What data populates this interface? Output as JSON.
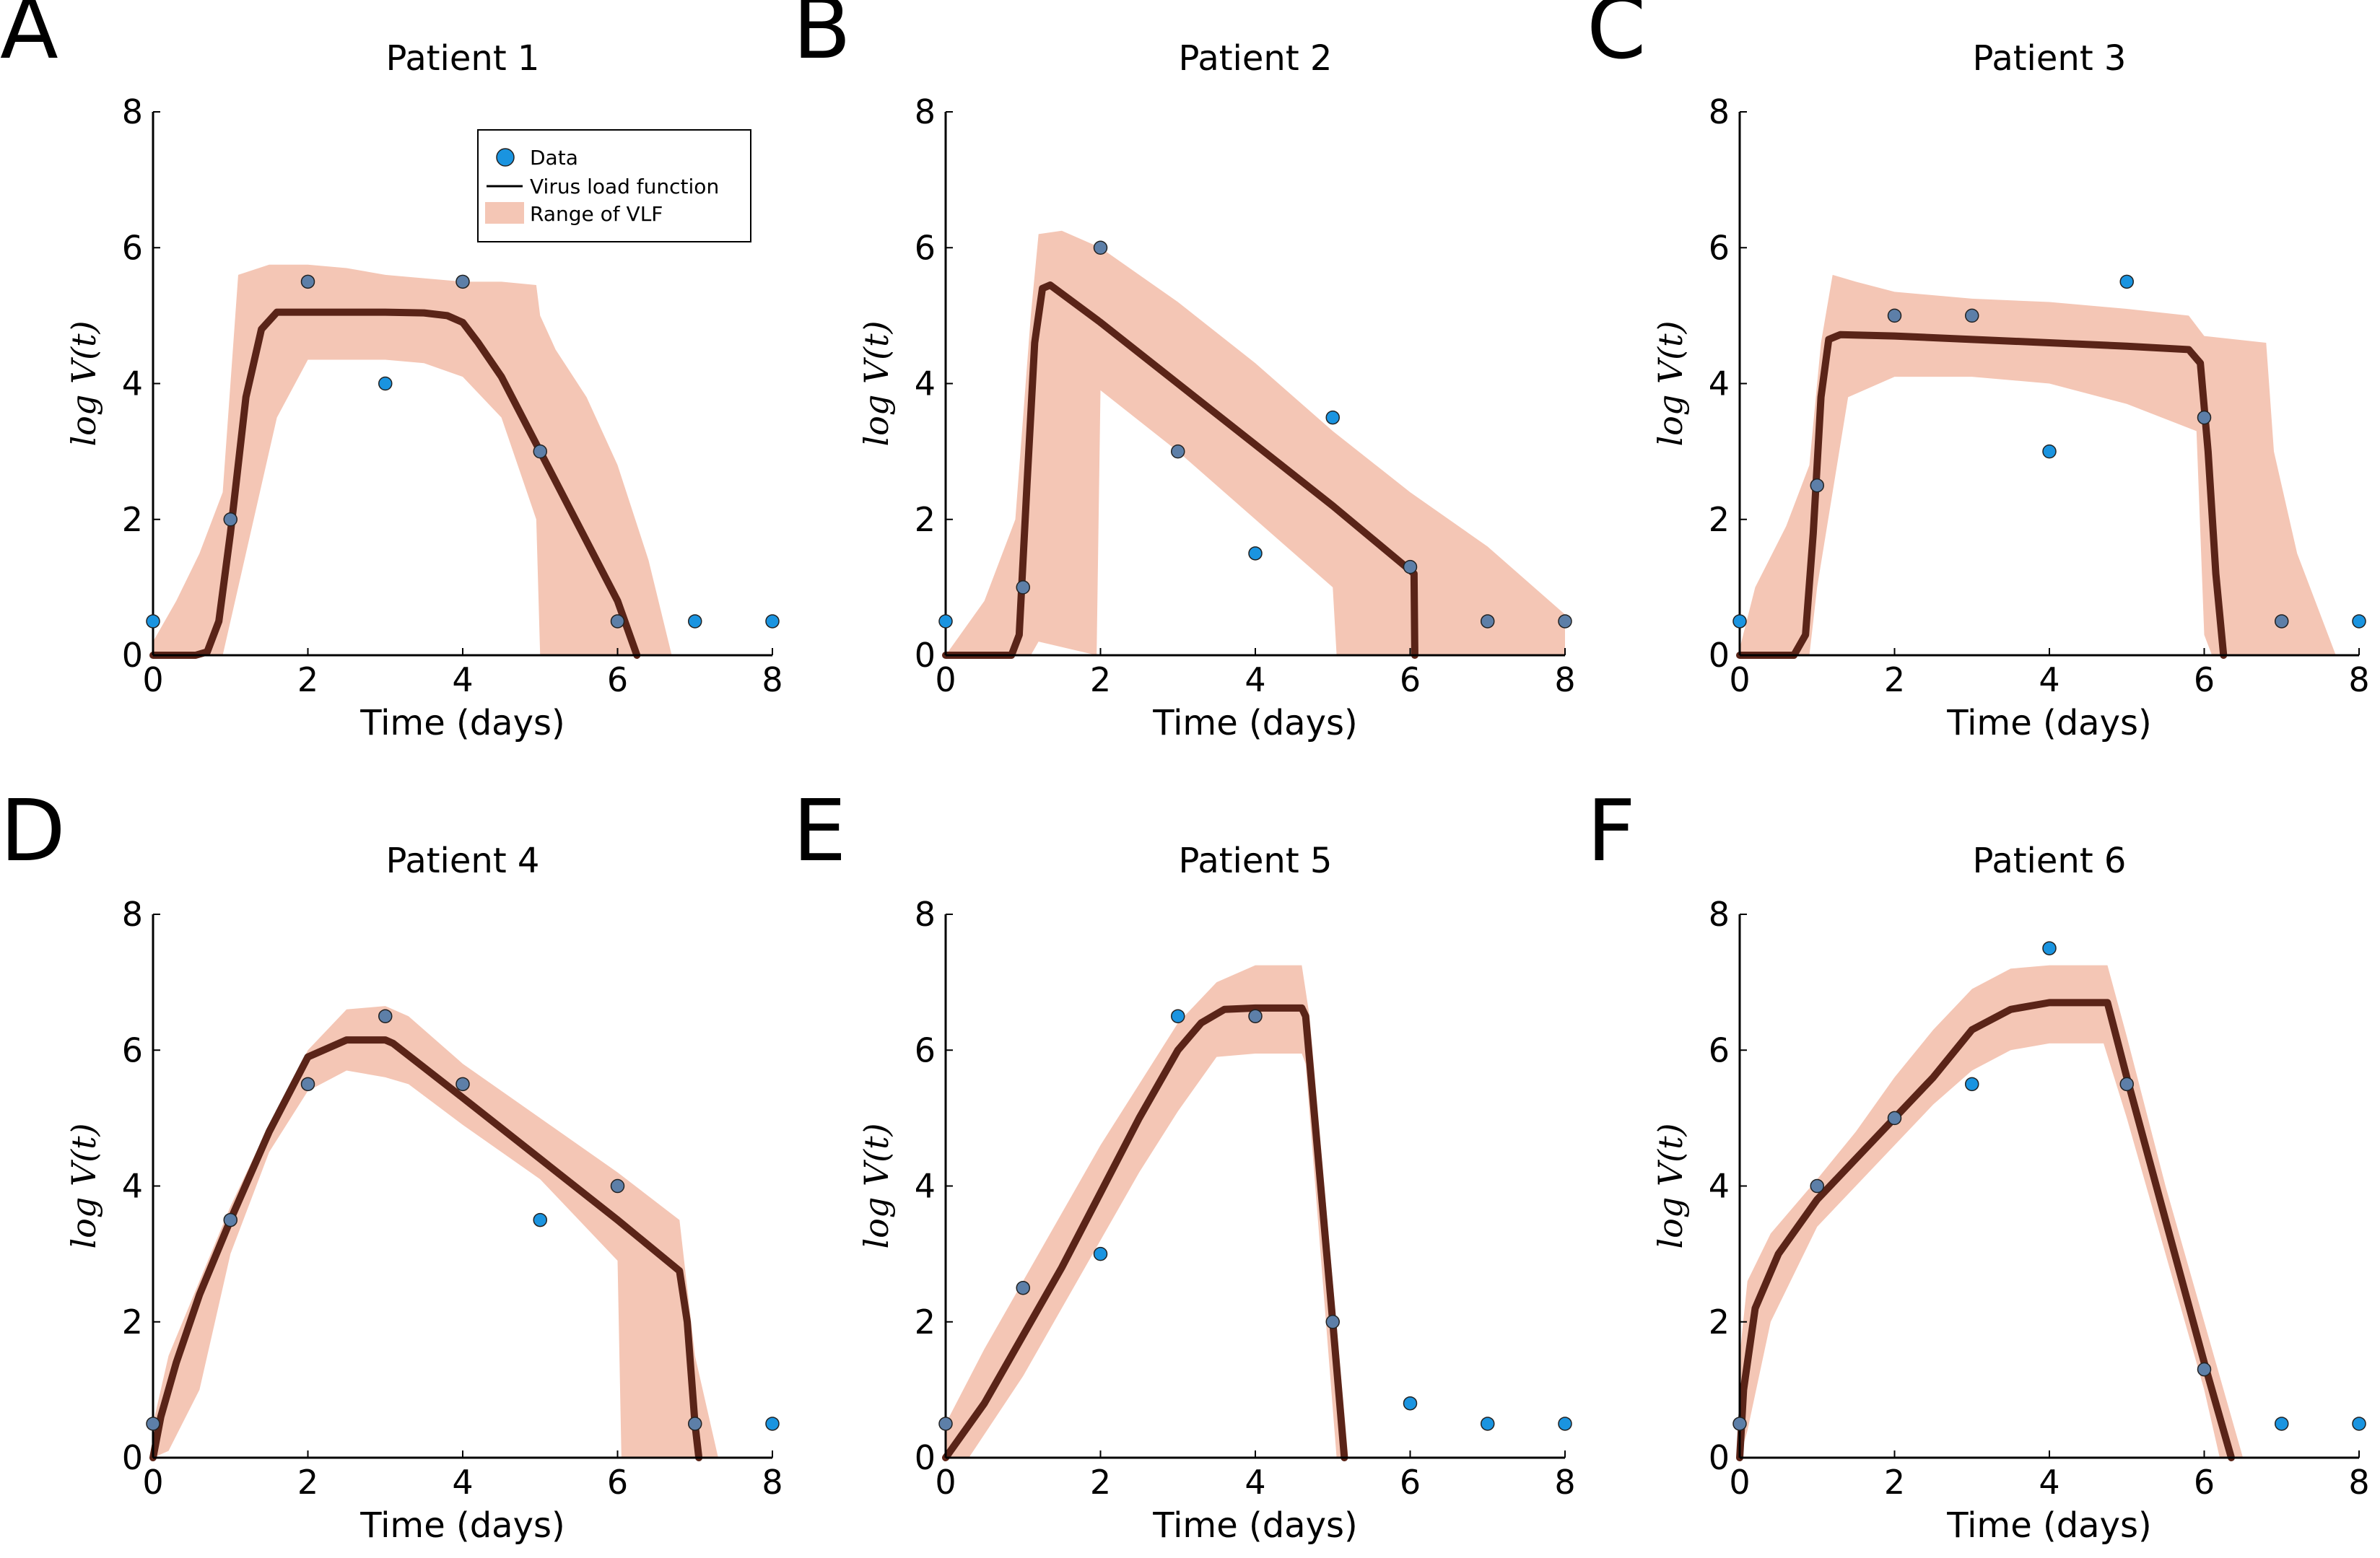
{
  "chart_data": [
    {
      "type": "line",
      "panel": "A",
      "title": "Patient 1",
      "xlabel": "Time (days)",
      "ylabel": "log V(t)",
      "xlim": [
        0,
        8
      ],
      "ylim": [
        0,
        8
      ],
      "xticks": [
        "0",
        "2",
        "4",
        "6",
        "8"
      ],
      "yticks": [
        "0",
        "2",
        "4",
        "6",
        "8"
      ],
      "data_points": {
        "x": [
          0,
          1,
          2,
          3,
          4,
          5,
          6,
          7,
          8
        ],
        "y": [
          0.5,
          2.0,
          5.5,
          4.0,
          5.5,
          3.0,
          0.5,
          0.5,
          0.5
        ]
      },
      "vlf": {
        "x": [
          0,
          0.55,
          0.7,
          0.85,
          1.0,
          1.2,
          1.4,
          1.6,
          2.0,
          3.0,
          3.5,
          3.8,
          4.0,
          4.2,
          4.5,
          5.0,
          5.5,
          6.0,
          6.25
        ],
        "y": [
          0,
          0,
          0.05,
          0.5,
          1.8,
          3.8,
          4.8,
          5.05,
          5.05,
          5.05,
          5.04,
          5.0,
          4.9,
          4.6,
          4.1,
          3.0,
          1.9,
          0.8,
          0
        ]
      },
      "range_upper": {
        "x": [
          0,
          0.3,
          0.6,
          0.9,
          1.0,
          1.1,
          1.5,
          2.0,
          2.5,
          3.0,
          3.5,
          4.0,
          4.5,
          4.95,
          5.0,
          5.2,
          5.6,
          6.0,
          6.4,
          6.7
        ],
        "y": [
          0.2,
          0.8,
          1.5,
          2.4,
          4.0,
          5.6,
          5.75,
          5.75,
          5.7,
          5.6,
          5.55,
          5.5,
          5.5,
          5.45,
          5.0,
          4.5,
          3.8,
          2.8,
          1.4,
          0
        ]
      },
      "range_lower": {
        "x": [
          0,
          0.6,
          0.9,
          1.0,
          1.3,
          1.6,
          2.0,
          3.0,
          3.5,
          4.0,
          4.5,
          4.95,
          5.0,
          5.1,
          6.0,
          6.2
        ],
        "y": [
          0,
          0,
          0,
          0.5,
          2.0,
          3.5,
          4.35,
          4.35,
          4.3,
          4.1,
          3.5,
          2.0,
          0,
          0,
          0,
          0
        ]
      },
      "legend": {
        "placement": "top-right",
        "entries": [
          "Data",
          "Virus load function",
          "Range of VLF"
        ]
      }
    },
    {
      "type": "line",
      "panel": "B",
      "title": "Patient 2",
      "xlabel": "Time (days)",
      "ylabel": "log V(t)",
      "xlim": [
        0,
        8
      ],
      "ylim": [
        0,
        8
      ],
      "xticks": [
        "0",
        "2",
        "4",
        "6",
        "8"
      ],
      "yticks": [
        "0",
        "2",
        "4",
        "6",
        "8"
      ],
      "data_points": {
        "x": [
          0,
          1,
          2,
          3,
          4,
          5,
          6,
          7,
          8
        ],
        "y": [
          0.5,
          1.0,
          6.0,
          3.0,
          1.5,
          3.5,
          1.3,
          0.5,
          0.5
        ]
      },
      "vlf": {
        "x": [
          0,
          0.85,
          0.95,
          1.05,
          1.15,
          1.25,
          1.35,
          2.0,
          3.0,
          4.0,
          5.0,
          6.0,
          6.05,
          6.06
        ],
        "y": [
          0,
          0,
          0.3,
          2.5,
          4.6,
          5.4,
          5.45,
          4.9,
          4.0,
          3.1,
          2.2,
          1.25,
          1.2,
          0
        ]
      },
      "range_upper": {
        "x": [
          0,
          0.5,
          0.9,
          1.1,
          1.2,
          1.5,
          2.0,
          3.0,
          4.0,
          5.0,
          6.0,
          7.0,
          8.0
        ],
        "y": [
          0,
          0.8,
          2.0,
          5.0,
          6.2,
          6.25,
          6.0,
          5.2,
          4.3,
          3.3,
          2.4,
          1.6,
          0.6
        ]
      },
      "range_lower": {
        "x": [
          0,
          1.1,
          1.2,
          1.95,
          2.0,
          3.0,
          4.0,
          5.0,
          5.05,
          6.2,
          7.0,
          8.0
        ],
        "y": [
          0,
          0,
          0.2,
          0.0,
          3.9,
          3.0,
          2.0,
          1.0,
          0,
          0,
          0,
          0
        ]
      },
      "legend": null
    },
    {
      "type": "line",
      "panel": "C",
      "title": "Patient 3",
      "xlabel": "Time (days)",
      "ylabel": "log V(t)",
      "xlim": [
        0,
        8
      ],
      "ylim": [
        0,
        8
      ],
      "xticks": [
        "0",
        "2",
        "4",
        "6",
        "8"
      ],
      "yticks": [
        "0",
        "2",
        "4",
        "6",
        "8"
      ],
      "data_points": {
        "x": [
          0,
          1,
          2,
          3,
          4,
          5,
          6,
          7,
          8
        ],
        "y": [
          0.5,
          2.5,
          5.0,
          5.0,
          3.0,
          5.5,
          3.5,
          0.5,
          0.5
        ]
      },
      "vlf": {
        "x": [
          0,
          0.7,
          0.85,
          0.95,
          1.05,
          1.15,
          1.3,
          2.0,
          3.0,
          4.0,
          5.0,
          5.8,
          5.95,
          6.05,
          6.15,
          6.25
        ],
        "y": [
          0,
          0,
          0.3,
          1.8,
          3.8,
          4.65,
          4.72,
          4.7,
          4.65,
          4.6,
          4.55,
          4.5,
          4.3,
          3.0,
          1.2,
          0
        ]
      },
      "range_upper": {
        "x": [
          0,
          0.2,
          0.6,
          0.9,
          1.05,
          1.2,
          1.5,
          2.0,
          3.0,
          4.0,
          5.0,
          5.8,
          6.0,
          6.8,
          6.9,
          7.2,
          7.7
        ],
        "y": [
          0.1,
          1.0,
          1.9,
          2.8,
          4.6,
          5.6,
          5.5,
          5.35,
          5.25,
          5.2,
          5.1,
          5.0,
          4.7,
          4.6,
          3.0,
          1.5,
          0
        ]
      },
      "range_lower": {
        "x": [
          0,
          0.9,
          1.0,
          1.4,
          2.0,
          3.0,
          4.0,
          5.0,
          5.9,
          6.0,
          6.1,
          7.0
        ],
        "y": [
          0,
          0,
          1.0,
          3.8,
          4.1,
          4.1,
          4.0,
          3.7,
          3.3,
          0.3,
          0,
          0
        ]
      },
      "legend": null
    },
    {
      "type": "line",
      "panel": "D",
      "title": "Patient 4",
      "xlabel": "Time (days)",
      "ylabel": "log V(t)",
      "xlim": [
        0,
        8
      ],
      "ylim": [
        0,
        8
      ],
      "xticks": [
        "0",
        "2",
        "4",
        "6",
        "8"
      ],
      "yticks": [
        "0",
        "2",
        "4",
        "6",
        "8"
      ],
      "data_points": {
        "x": [
          0,
          1,
          2,
          3,
          4,
          5,
          6,
          7,
          8
        ],
        "y": [
          0.5,
          3.5,
          5.5,
          6.5,
          5.5,
          3.5,
          4.0,
          0.5,
          0.5
        ]
      },
      "vlf": {
        "x": [
          0,
          0.1,
          0.3,
          0.6,
          1.0,
          1.5,
          2.0,
          2.5,
          3.0,
          3.1,
          4.0,
          5.0,
          6.0,
          6.8,
          6.9,
          7.0,
          7.05
        ],
        "y": [
          0,
          0.6,
          1.4,
          2.4,
          3.5,
          4.8,
          5.9,
          6.15,
          6.15,
          6.1,
          5.3,
          4.4,
          3.5,
          2.75,
          2.0,
          0.5,
          0
        ]
      },
      "range_upper": {
        "x": [
          0,
          0.2,
          0.6,
          1.0,
          1.5,
          2.0,
          2.5,
          3.0,
          3.3,
          4.0,
          5.0,
          6.0,
          6.8,
          7.0,
          7.3
        ],
        "y": [
          0.5,
          1.5,
          2.6,
          3.7,
          4.9,
          6.0,
          6.6,
          6.65,
          6.5,
          5.8,
          5.0,
          4.2,
          3.5,
          1.5,
          0
        ]
      },
      "range_lower": {
        "x": [
          0,
          0.2,
          0.6,
          1.0,
          1.5,
          2.0,
          2.5,
          3.0,
          3.3,
          4.0,
          5.0,
          6.0,
          6.05,
          6.9,
          7.0
        ],
        "y": [
          0,
          0.1,
          1.0,
          3.0,
          4.5,
          5.4,
          5.7,
          5.6,
          5.5,
          4.9,
          4.1,
          2.9,
          0,
          0,
          0
        ]
      },
      "legend": null
    },
    {
      "type": "line",
      "panel": "E",
      "title": "Patient 5",
      "xlabel": "Time (days)",
      "ylabel": "log V(t)",
      "xlim": [
        0,
        8
      ],
      "ylim": [
        0,
        8
      ],
      "xticks": [
        "0",
        "2",
        "4",
        "6",
        "8"
      ],
      "yticks": [
        "0",
        "2",
        "4",
        "6",
        "8"
      ],
      "data_points": {
        "x": [
          0,
          1,
          2,
          3,
          4,
          5,
          6,
          7,
          8
        ],
        "y": [
          0.5,
          2.5,
          3.0,
          6.5,
          6.5,
          2.0,
          0.8,
          0.5,
          0.5
        ]
      },
      "vlf": {
        "x": [
          0,
          0.5,
          1.0,
          1.5,
          2.0,
          2.5,
          3.0,
          3.3,
          3.6,
          4.0,
          4.6,
          4.65,
          5.0,
          5.15
        ],
        "y": [
          0,
          0.8,
          1.8,
          2.8,
          3.9,
          5.0,
          6.0,
          6.4,
          6.6,
          6.62,
          6.62,
          6.5,
          2.0,
          0
        ]
      },
      "range_upper": {
        "x": [
          0,
          0.5,
          1.0,
          1.5,
          2.0,
          2.5,
          3.0,
          3.5,
          4.0,
          4.6,
          4.7,
          5.2
        ],
        "y": [
          0.5,
          1.6,
          2.6,
          3.6,
          4.6,
          5.5,
          6.4,
          7.0,
          7.25,
          7.25,
          6.5,
          0
        ]
      },
      "range_lower": {
        "x": [
          0,
          0.3,
          1.0,
          1.5,
          2.0,
          2.5,
          3.0,
          3.5,
          4.0,
          4.6,
          4.65,
          5.05
        ],
        "y": [
          0,
          0,
          1.2,
          2.2,
          3.2,
          4.2,
          5.1,
          5.9,
          5.95,
          5.95,
          5.8,
          0
        ]
      },
      "legend": null
    },
    {
      "type": "line",
      "panel": "F",
      "title": "Patient 6",
      "xlabel": "Time (days)",
      "ylabel": "log V(t)",
      "xlim": [
        0,
        8
      ],
      "ylim": [
        0,
        8
      ],
      "xticks": [
        "0",
        "2",
        "4",
        "6",
        "8"
      ],
      "yticks": [
        "0",
        "2",
        "4",
        "6",
        "8"
      ],
      "data_points": {
        "x": [
          0,
          1,
          2,
          3,
          4,
          5,
          6,
          7,
          8
        ],
        "y": [
          0.5,
          4.0,
          5.0,
          5.5,
          7.5,
          5.5,
          1.3,
          0.5,
          0.5
        ]
      },
      "vlf": {
        "x": [
          0,
          0.05,
          0.2,
          0.5,
          1.0,
          1.5,
          2.0,
          2.5,
          3.0,
          3.5,
          4.0,
          4.75,
          5.0,
          5.5,
          6.0,
          6.35
        ],
        "y": [
          0,
          1.0,
          2.2,
          3.0,
          3.8,
          4.4,
          5.0,
          5.6,
          6.3,
          6.6,
          6.7,
          6.7,
          5.6,
          3.5,
          1.4,
          0
        ]
      },
      "range_upper": {
        "x": [
          0,
          0.1,
          0.4,
          1.0,
          1.5,
          2.0,
          2.5,
          3.0,
          3.5,
          4.0,
          4.75,
          5.0,
          5.5,
          6.0,
          6.5
        ],
        "y": [
          1.5,
          2.6,
          3.3,
          4.1,
          4.8,
          5.6,
          6.3,
          6.9,
          7.2,
          7.25,
          7.25,
          6.2,
          4.0,
          2.0,
          0
        ]
      },
      "range_lower": {
        "x": [
          0,
          0.1,
          0.4,
          1.0,
          1.5,
          2.0,
          2.5,
          3.0,
          3.5,
          4.0,
          4.7,
          5.0,
          5.5,
          6.0,
          6.2
        ],
        "y": [
          0,
          0.4,
          2.0,
          3.4,
          4.0,
          4.6,
          5.2,
          5.7,
          6.0,
          6.1,
          6.1,
          5.0,
          3.0,
          1.0,
          0
        ]
      },
      "legend": null
    }
  ],
  "colors": {
    "band": "#f4c6b5",
    "line": "#5a2418",
    "marker": "#1a94e0",
    "marker_over_band": "#5d7fa8",
    "marker_edge": "#222222",
    "axis": "#000000"
  }
}
